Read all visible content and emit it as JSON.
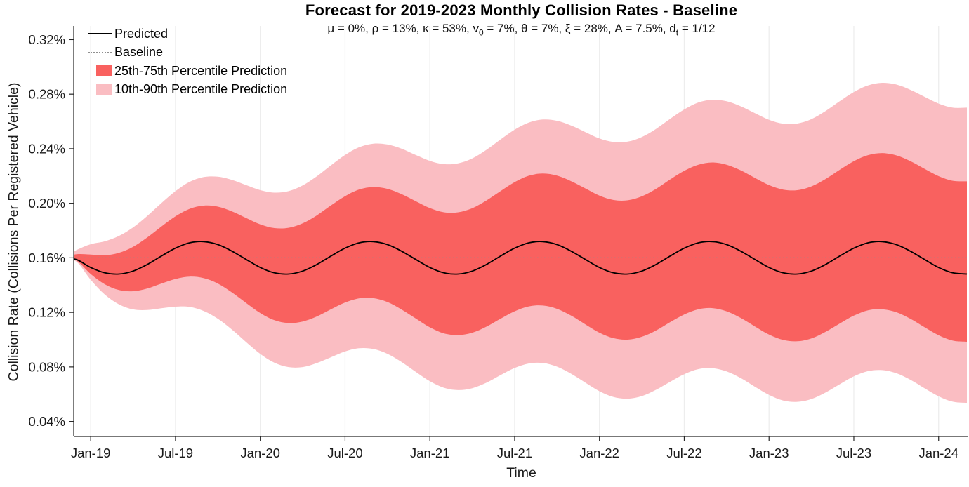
{
  "header": {
    "title": "Forecast for 2019-2023 Monthly Collision Rates - Baseline",
    "subtitle_parts": {
      "p0": "μ = 0%, ρ = 13%, κ = 53%, v",
      "sub0": "0",
      "p1": " = 7%, θ = 7%, ξ = 28%, A = 7.5%, d",
      "sub1": "t",
      "p2": " = 1/12"
    }
  },
  "chart_data": {
    "type": "area",
    "title": "Forecast for 2019-2023 Monthly Collision Rates - Baseline",
    "subtitle": "μ = 0%, ρ = 13%, κ = 53%, v0 = 7%, θ = 7%, ξ = 28%, A = 7.5%, dt = 1/12",
    "xlabel": "Time",
    "ylabel": "Collision Rate (Collisions Per Registered Vehicle)",
    "legend_position": "top-left-inside",
    "grid": "vertical-only",
    "axes": {
      "xlim_months": [
        -1.2,
        62.1
      ],
      "ylim_percent": [
        0.029,
        0.33
      ],
      "x_tick_months": [
        0,
        6,
        12,
        18,
        24,
        30,
        36,
        42,
        48,
        54,
        60
      ],
      "x_tick_labels": [
        "Jan-19",
        "Jul-19",
        "Jan-20",
        "Jul-20",
        "Jan-21",
        "Jul-21",
        "Jan-22",
        "Jul-22",
        "Jan-23",
        "Jul-23",
        "Jan-24"
      ],
      "y_tick_values": [
        0.04,
        0.08,
        0.12,
        0.16,
        0.2,
        0.24,
        0.28,
        0.32
      ],
      "y_tick_labels": [
        "0.04%",
        "0.08%",
        "0.12%",
        "0.16%",
        "0.20%",
        "0.24%",
        "0.28%",
        "0.32%"
      ]
    },
    "months_from_jan19": [
      -2,
      -1,
      0,
      1,
      2,
      3,
      4,
      5,
      6,
      7,
      8,
      9,
      10,
      11,
      12,
      13,
      14,
      15,
      16,
      17,
      18,
      19,
      20,
      21,
      22,
      23,
      24,
      25,
      26,
      27,
      28,
      29,
      30,
      31,
      32,
      33,
      34,
      35,
      36,
      37,
      38,
      39,
      40,
      41,
      42,
      43,
      44,
      45,
      46,
      47,
      48,
      49,
      50,
      51,
      52,
      53,
      54,
      55,
      56,
      57,
      58,
      59,
      60,
      61,
      62
    ],
    "baseline_percent": 0.16,
    "series": [
      {
        "name": "Predicted",
        "type": "line",
        "color": "#000000",
        "values_percent": [
          0.16,
          0.1587,
          0.1529,
          0.149,
          0.1481,
          0.1503,
          0.1551,
          0.1613,
          0.1671,
          0.171,
          0.1719,
          0.1697,
          0.1649,
          0.1588,
          0.1529,
          0.149,
          0.1481,
          0.1503,
          0.1551,
          0.1613,
          0.1671,
          0.171,
          0.1719,
          0.1697,
          0.1649,
          0.1588,
          0.1529,
          0.149,
          0.1481,
          0.1503,
          0.1551,
          0.1613,
          0.1671,
          0.171,
          0.1719,
          0.1697,
          0.1649,
          0.1588,
          0.1529,
          0.149,
          0.1481,
          0.1503,
          0.1551,
          0.1613,
          0.1671,
          0.171,
          0.1719,
          0.1697,
          0.1649,
          0.1588,
          0.1529,
          0.149,
          0.1481,
          0.1503,
          0.1551,
          0.1613,
          0.1671,
          0.171,
          0.1719,
          0.1697,
          0.1649,
          0.1588,
          0.1529,
          0.149,
          0.1481
        ]
      },
      {
        "name": "Baseline",
        "type": "dotted_hline",
        "color": "#8f8f8f",
        "value_percent": 0.16
      },
      {
        "name": "25th-75th Percentile Prediction",
        "type": "band",
        "color": "#F9615F",
        "upper_percent": [
          0.16,
          0.1626,
          0.1624,
          0.1619,
          0.1637,
          0.1681,
          0.1749,
          0.1829,
          0.1904,
          0.1959,
          0.1983,
          0.1975,
          0.194,
          0.1892,
          0.1845,
          0.1818,
          0.182,
          0.1853,
          0.1911,
          0.1984,
          0.2052,
          0.2101,
          0.2119,
          0.2106,
          0.2067,
          0.2015,
          0.1965,
          0.1934,
          0.1934,
          0.1964,
          0.202,
          0.2089,
          0.2155,
          0.2202,
          0.2218,
          0.2203,
          0.2162,
          0.2109,
          0.2056,
          0.2024,
          0.2022,
          0.2051,
          0.2105,
          0.2174,
          0.2238,
          0.2283,
          0.2299,
          0.2283,
          0.2241,
          0.2186,
          0.2133,
          0.21,
          0.2096,
          0.2124,
          0.2178,
          0.2245,
          0.2309,
          0.2353,
          0.2368,
          0.2351,
          0.2309,
          0.2253,
          0.2199,
          0.2165,
          0.2161
        ],
        "lower_percent": [
          0.16,
          0.1579,
          0.1481,
          0.1406,
          0.1364,
          0.1355,
          0.1375,
          0.1411,
          0.1445,
          0.1462,
          0.1451,
          0.1411,
          0.1346,
          0.1269,
          0.1195,
          0.1143,
          0.1122,
          0.1133,
          0.117,
          0.1223,
          0.1272,
          0.1303,
          0.1304,
          0.1276,
          0.1221,
          0.1155,
          0.109,
          0.1046,
          0.1033,
          0.1051,
          0.1095,
          0.1153,
          0.1208,
          0.1244,
          0.125,
          0.1226,
          0.1176,
          0.1112,
          0.1051,
          0.1011,
          0.1,
          0.1021,
          0.1067,
          0.1128,
          0.1185,
          0.1223,
          0.1231,
          0.1208,
          0.1159,
          0.1097,
          0.1037,
          0.0998,
          0.0988,
          0.1009,
          0.1057,
          0.1118,
          0.1176,
          0.1215,
          0.1223,
          0.1201,
          0.1153,
          0.1091,
          0.1032,
          0.0993,
          0.0984
        ]
      },
      {
        "name": "10th-90th Percentile Prediction",
        "type": "band",
        "color": "#FABDC2",
        "upper_percent": [
          0.16,
          0.1657,
          0.17,
          0.1721,
          0.176,
          0.1823,
          0.1907,
          0.2001,
          0.2089,
          0.2157,
          0.2192,
          0.2195,
          0.2171,
          0.2133,
          0.2096,
          0.2078,
          0.2089,
          0.2131,
          0.2198,
          0.2278,
          0.2354,
          0.2411,
          0.2437,
          0.2431,
          0.24,
          0.2354,
          0.2311,
          0.2287,
          0.2293,
          0.2329,
          0.2392,
          0.2468,
          0.254,
          0.2592,
          0.2614,
          0.2605,
          0.257,
          0.2522,
          0.2475,
          0.2449,
          0.2452,
          0.2486,
          0.2545,
          0.2619,
          0.2688,
          0.2739,
          0.2759,
          0.2748,
          0.2711,
          0.2661,
          0.2612,
          0.2584,
          0.2585,
          0.2617,
          0.2676,
          0.2748,
          0.2816,
          0.2864,
          0.2883,
          0.2871,
          0.2832,
          0.2781,
          0.2731,
          0.2701,
          0.2701
        ],
        "lower_percent": [
          0.16,
          0.1571,
          0.1439,
          0.1331,
          0.1259,
          0.1222,
          0.1217,
          0.123,
          0.1242,
          0.124,
          0.121,
          0.1153,
          0.1073,
          0.0982,
          0.0895,
          0.0831,
          0.0799,
          0.0799,
          0.0828,
          0.0871,
          0.0913,
          0.0937,
          0.0931,
          0.0896,
          0.0836,
          0.0764,
          0.0695,
          0.0647,
          0.063,
          0.0644,
          0.0684,
          0.074,
          0.0792,
          0.0825,
          0.0829,
          0.0802,
          0.075,
          0.0685,
          0.0622,
          0.0579,
          0.0567,
          0.0586,
          0.0632,
          0.0691,
          0.0747,
          0.0784,
          0.0791,
          0.0767,
          0.0718,
          0.0655,
          0.0595,
          0.0554,
          0.0544,
          0.0565,
          0.0612,
          0.0673,
          0.0731,
          0.0769,
          0.0777,
          0.0754,
          0.0706,
          0.0644,
          0.0585,
          0.0545,
          0.0536
        ]
      }
    ],
    "colors": {
      "band_25_75": "#F9615F",
      "band_10_90": "#FABDC2",
      "predicted_line": "#000000",
      "baseline_line": "#8f8f8f",
      "gridline": "#ededed",
      "axis": "#262626"
    }
  }
}
